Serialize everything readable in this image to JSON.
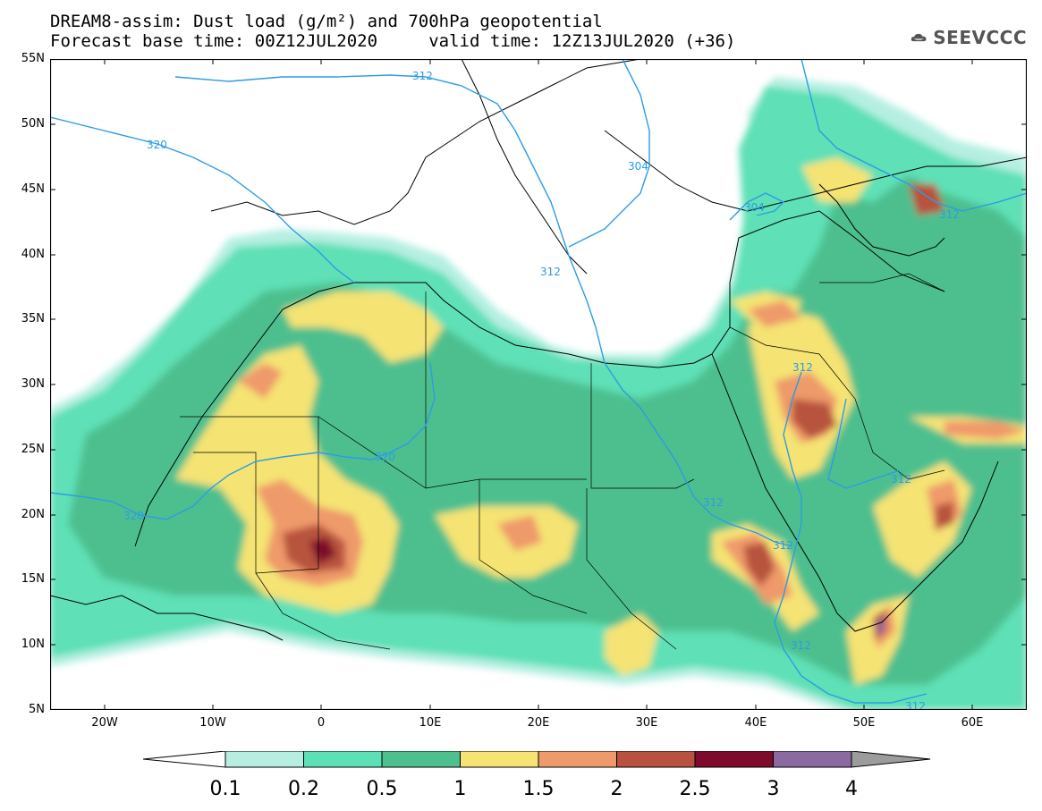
{
  "title": {
    "line1": "DREAM8-assim: Dust load (g/m²) and 700hPa geopotential",
    "line2": "Forecast base time: 00Z12JUL2020     valid time: 12Z13JUL2020 (+36)"
  },
  "logo": {
    "text": "SEEVCCC",
    "icon": "cloud-icon"
  },
  "axes": {
    "lat_labels": [
      "55N",
      "50N",
      "45N",
      "40N",
      "35N",
      "30N",
      "25N",
      "20N",
      "15N",
      "10N",
      "5N"
    ],
    "lon_labels": [
      "20W",
      "10W",
      "0",
      "10E",
      "20E",
      "30E",
      "40E",
      "50E",
      "60E"
    ],
    "lon_range": [
      -25,
      65
    ],
    "lat_range": [
      5,
      55
    ]
  },
  "contour_labels": [
    {
      "text": "320"
    },
    {
      "text": "312"
    },
    {
      "text": "304"
    },
    {
      "text": "304"
    },
    {
      "text": "312"
    },
    {
      "text": "312"
    },
    {
      "text": "320"
    },
    {
      "text": "320"
    },
    {
      "text": "312"
    },
    {
      "text": "312"
    },
    {
      "text": "312"
    },
    {
      "text": "312"
    },
    {
      "text": "312"
    },
    {
      "text": "312"
    }
  ],
  "colorbar": {
    "labels": [
      "0.1",
      "0.2",
      "0.5",
      "1",
      "1.5",
      "2",
      "2.5",
      "3",
      "4"
    ],
    "colors": [
      "#b6efe2",
      "#5ee0b6",
      "#4ebf8e",
      "#f5e373",
      "#ef9a6a",
      "#b8523e",
      "#7e0a2c",
      "#8a6aa0",
      "#9c9c9c"
    ]
  },
  "colors": {
    "contour_line": "#2d9ce3",
    "map_bg": "#ffffff"
  }
}
